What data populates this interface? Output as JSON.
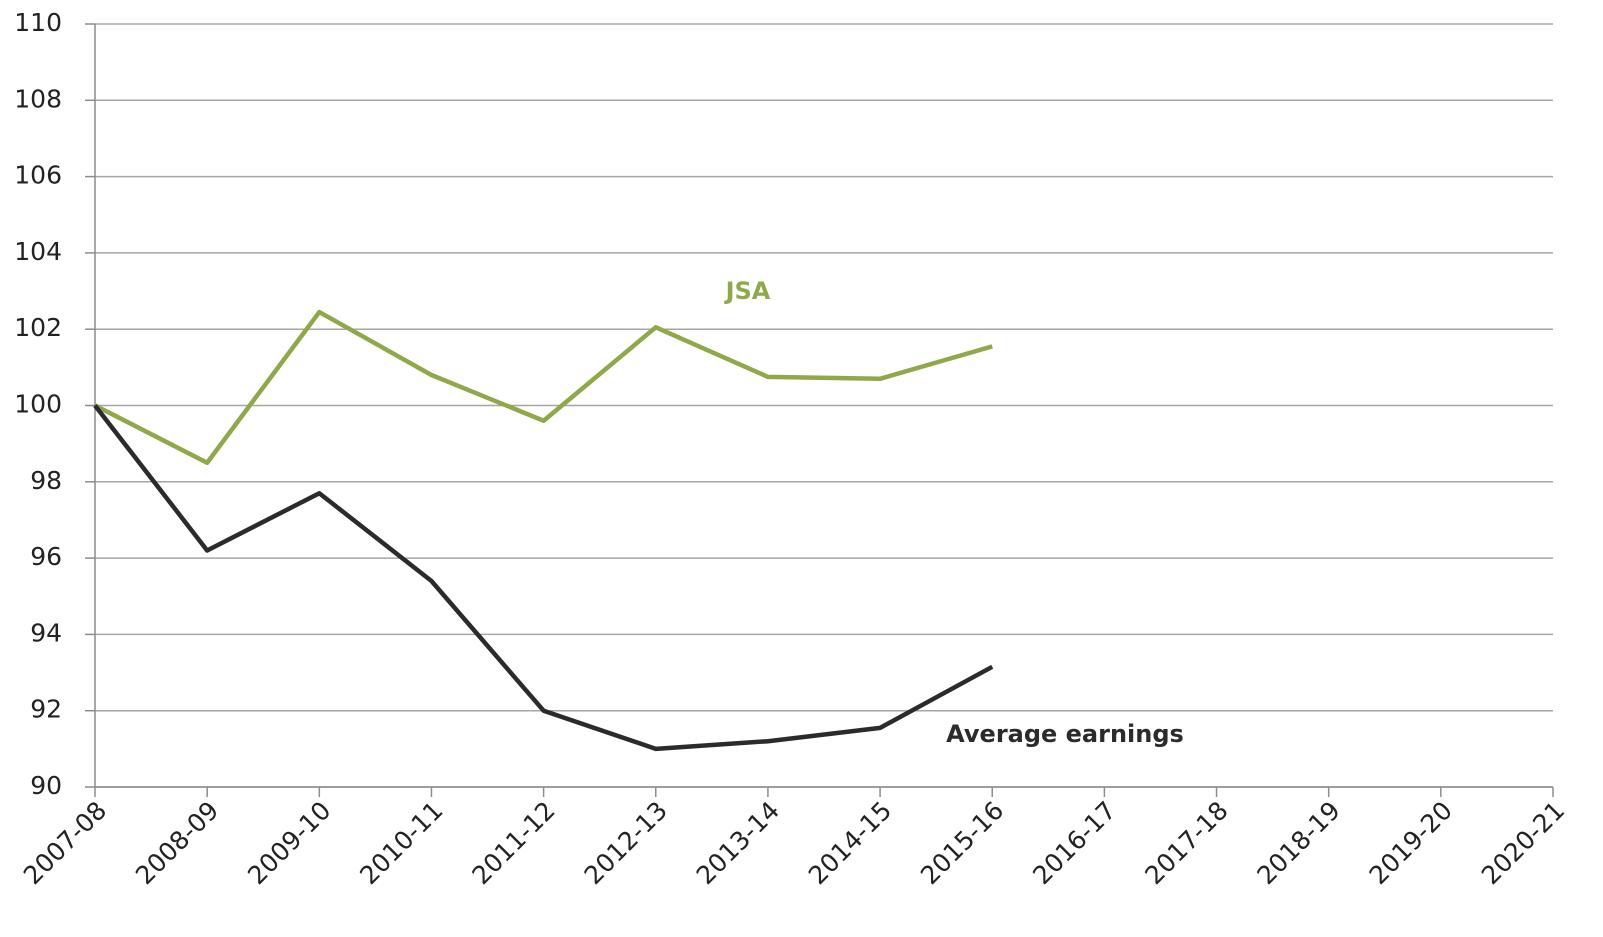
{
  "chart_data": {
    "type": "line",
    "categories": [
      "2007-08",
      "2008-09",
      "2009-10",
      "2010-11",
      "2011-12",
      "2012-13",
      "2013-14",
      "2014-15",
      "2015-16",
      "2016-17",
      "2017-18",
      "2018-19",
      "2019-20",
      "2020-21"
    ],
    "series": [
      {
        "name": "JSA",
        "color": "#8fa84a",
        "values": [
          100,
          98.5,
          102.45,
          100.8,
          99.6,
          102.05,
          100.75,
          100.7,
          101.55,
          null,
          null,
          null,
          null,
          null
        ]
      },
      {
        "name": "Average earnings",
        "color": "#2b2b2b",
        "values": [
          100,
          96.2,
          97.7,
          95.4,
          92.0,
          91.0,
          91.2,
          91.55,
          93.15,
          null,
          null,
          null,
          null,
          null
        ]
      }
    ],
    "ylim": [
      90,
      110
    ],
    "yticks": [
      90,
      92,
      94,
      96,
      98,
      100,
      102,
      104,
      106,
      108,
      110
    ],
    "grid": true
  }
}
